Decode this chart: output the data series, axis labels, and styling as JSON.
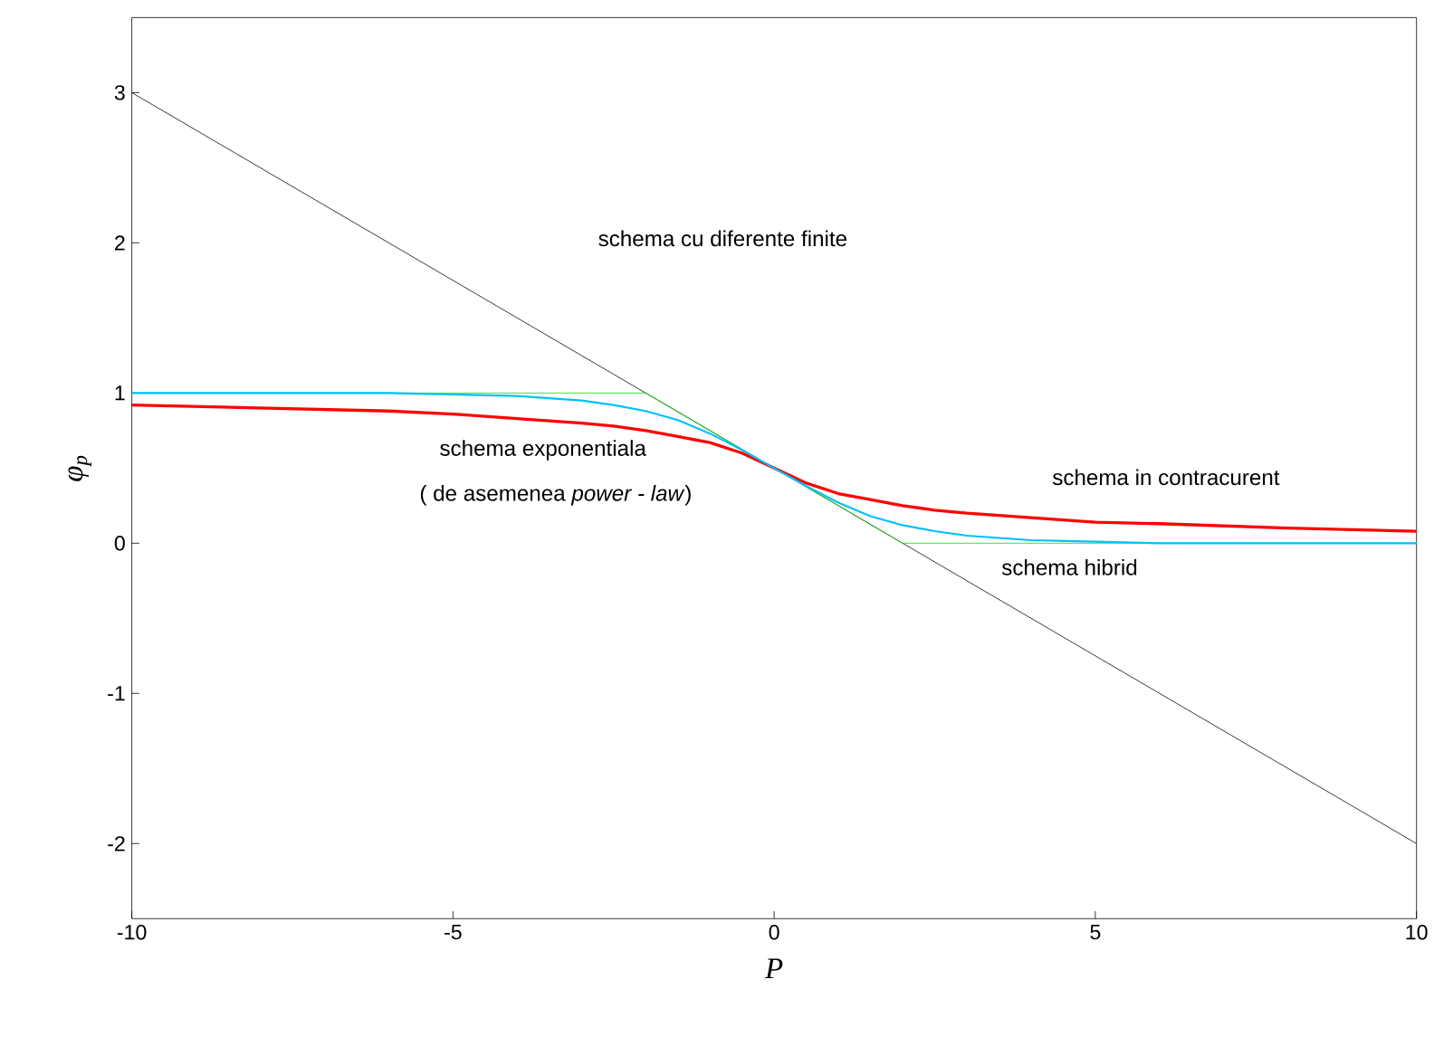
{
  "chart_data": {
    "type": "line",
    "xlabel": "P",
    "ylabel": "φ$_{p}$",
    "xlim": [
      -10,
      10
    ],
    "ylim": [
      -2.5,
      3.5
    ],
    "xticks": [
      -10,
      -5,
      0,
      5,
      10
    ],
    "yticks": [
      -2,
      -1,
      0,
      1,
      2,
      3
    ],
    "grid": false,
    "marker": "none",
    "line_style": "solid",
    "series": [
      {
        "color": "#000000",
        "x": [
          -10,
          10
        ],
        "values": [
          3,
          -2
        ]
      },
      {
        "color": "#ff0000",
        "x": [
          -10,
          -8,
          -6,
          -5,
          -4,
          -3,
          -2.5,
          -2,
          -1.5,
          -1,
          -0.5,
          0,
          0.5,
          1,
          1.5,
          2,
          2.5,
          3,
          4,
          5,
          6,
          8,
          10
        ],
        "values": [
          0.92,
          0.9,
          0.88,
          0.86,
          0.83,
          0.8,
          0.78,
          0.75,
          0.71,
          0.67,
          0.6,
          0.5,
          0.4,
          0.33,
          0.29,
          0.25,
          0.22,
          0.2,
          0.17,
          0.14,
          0.13,
          0.1,
          0.08
        ]
      },
      {
        "color": "#00dd00",
        "x": [
          -10,
          -2,
          2,
          10
        ],
        "values": [
          1,
          1,
          0,
          0
        ]
      },
      {
        "color": "#00bfff",
        "x": [
          -10,
          -8,
          -6,
          -5,
          -4,
          -3,
          -2.5,
          -2,
          -1.5,
          -1,
          -0.5,
          0,
          0.5,
          1,
          1.5,
          2,
          2.5,
          3,
          4,
          5,
          6,
          8,
          10
        ],
        "values": [
          1.0,
          1.0,
          1.0,
          0.99,
          0.98,
          0.95,
          0.92,
          0.88,
          0.82,
          0.73,
          0.62,
          0.5,
          0.38,
          0.27,
          0.18,
          0.12,
          0.08,
          0.05,
          0.02,
          0.01,
          0.0,
          0.0,
          0.0
        ]
      }
    ],
    "annotations": [
      "schema cu diferente finite",
      "schema exponentiala",
      "( de asemenea *power - law*)",
      "schema in contracurent",
      "schema hibrid"
    ]
  }
}
